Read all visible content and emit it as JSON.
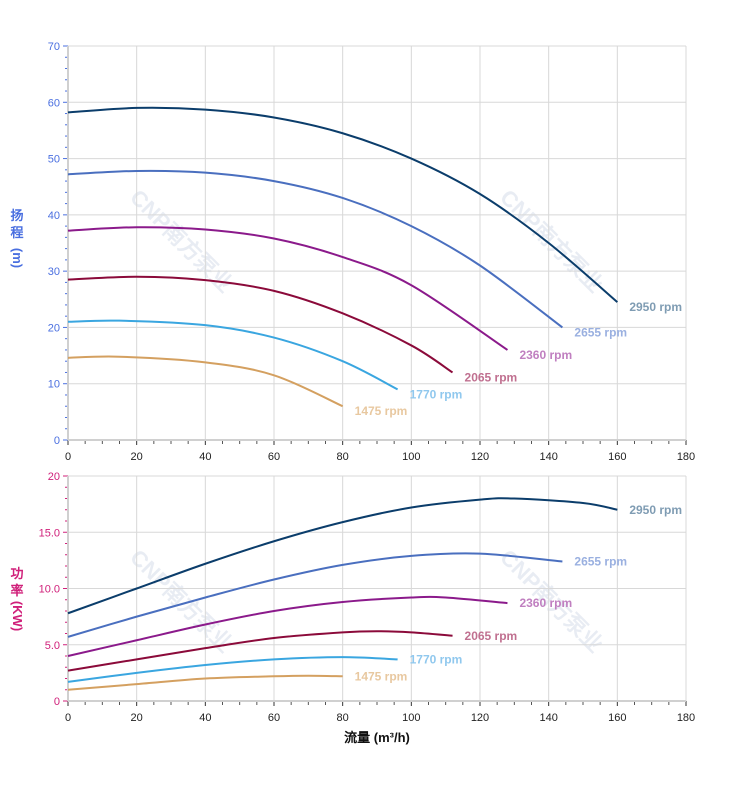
{
  "watermark": "CNP南方泵业",
  "chart_data": [
    {
      "type": "line",
      "ylabel_chars": [
        "扬",
        "程"
      ],
      "ylabel_unit": "(m)",
      "xlim": [
        0,
        180
      ],
      "ylim": [
        0,
        70
      ],
      "xticks": [
        "0",
        "20",
        "40",
        "60",
        "80",
        "100",
        "120",
        "140",
        "160",
        "180"
      ],
      "yticks": [
        "0",
        "10",
        "20",
        "30",
        "40",
        "50",
        "60",
        "70"
      ],
      "grid": true,
      "axis_color": "#4a6fe0",
      "series": [
        {
          "name": "2950 rpm",
          "color": "#0b3d6b",
          "label_color": "#7f9cb3",
          "x": [
            0,
            20,
            40,
            60,
            80,
            100,
            120,
            140,
            160
          ],
          "y": [
            58.2,
            59,
            58.7,
            57.3,
            54.5,
            50,
            43.7,
            35,
            24.5
          ]
        },
        {
          "name": "2655 rpm",
          "color": "#4a6fbf",
          "label_color": "#9ab0e0",
          "x": [
            0,
            20,
            40,
            60,
            80,
            100,
            120,
            144
          ],
          "y": [
            47.2,
            47.8,
            47.5,
            46,
            43,
            38,
            31,
            20
          ]
        },
        {
          "name": "2360 rpm",
          "color": "#8b1a8b",
          "label_color": "#c07fc0",
          "x": [
            0,
            20,
            40,
            60,
            80,
            100,
            128
          ],
          "y": [
            37.2,
            37.8,
            37.4,
            35.8,
            32.5,
            27.5,
            16
          ]
        },
        {
          "name": "2065 rpm",
          "color": "#8b0a3a",
          "label_color": "#c07090",
          "x": [
            0,
            20,
            40,
            60,
            80,
            100,
            112
          ],
          "y": [
            28.5,
            29,
            28.4,
            26.5,
            22.5,
            16.8,
            12
          ]
        },
        {
          "name": "1770 rpm",
          "color": "#3aa6e0",
          "label_color": "#90c8ee",
          "x": [
            0,
            15,
            40,
            60,
            80,
            96
          ],
          "y": [
            21,
            21.2,
            20.4,
            18.2,
            14,
            9
          ]
        },
        {
          "name": "1475 rpm",
          "color": "#d4a060",
          "label_color": "#e8c8a0",
          "x": [
            0,
            15,
            40,
            60,
            80
          ],
          "y": [
            14.6,
            14.8,
            13.8,
            11.5,
            6
          ]
        }
      ]
    },
    {
      "type": "line",
      "ylabel_chars": [
        "功",
        "率"
      ],
      "ylabel_unit": "(KW)",
      "xlabel": "流量 (m³/h)",
      "xlim": [
        0,
        180
      ],
      "ylim": [
        0,
        20
      ],
      "xticks": [
        "0",
        "20",
        "40",
        "60",
        "80",
        "100",
        "120",
        "140",
        "160",
        "180"
      ],
      "yticks": [
        "0",
        "5.0",
        "10.0",
        "15.0",
        "20"
      ],
      "grid": true,
      "axis_color": "#d0207a",
      "series": [
        {
          "name": "2950 rpm",
          "color": "#0b3d6b",
          "label_color": "#7f9cb3",
          "x": [
            0,
            20,
            40,
            60,
            80,
            100,
            120,
            130,
            150,
            160
          ],
          "y": [
            7.8,
            10,
            12.2,
            14.2,
            15.9,
            17.2,
            17.9,
            18,
            17.6,
            17
          ]
        },
        {
          "name": "2655 rpm",
          "color": "#4a6fbf",
          "label_color": "#9ab0e0",
          "x": [
            0,
            20,
            40,
            60,
            80,
            100,
            120,
            144
          ],
          "y": [
            5.7,
            7.5,
            9.2,
            10.8,
            12.1,
            12.9,
            13.1,
            12.4
          ]
        },
        {
          "name": "2360 rpm",
          "color": "#8b1a8b",
          "label_color": "#c07fc0",
          "x": [
            0,
            20,
            40,
            60,
            80,
            100,
            110,
            128
          ],
          "y": [
            4.0,
            5.4,
            6.8,
            8.0,
            8.8,
            9.2,
            9.2,
            8.7
          ]
        },
        {
          "name": "2065 rpm",
          "color": "#8b0a3a",
          "label_color": "#c07090",
          "x": [
            0,
            20,
            40,
            60,
            80,
            90,
            100,
            112
          ],
          "y": [
            2.7,
            3.7,
            4.7,
            5.6,
            6.1,
            6.2,
            6.1,
            5.8
          ]
        },
        {
          "name": "1770 rpm",
          "color": "#3aa6e0",
          "label_color": "#90c8ee",
          "x": [
            0,
            20,
            40,
            60,
            80,
            96
          ],
          "y": [
            1.7,
            2.5,
            3.2,
            3.7,
            3.9,
            3.7
          ]
        },
        {
          "name": "1475 rpm",
          "color": "#d4a060",
          "label_color": "#e8c8a0",
          "x": [
            0,
            20,
            40,
            60,
            70,
            80
          ],
          "y": [
            1.0,
            1.5,
            2.0,
            2.2,
            2.25,
            2.2
          ]
        }
      ]
    }
  ]
}
